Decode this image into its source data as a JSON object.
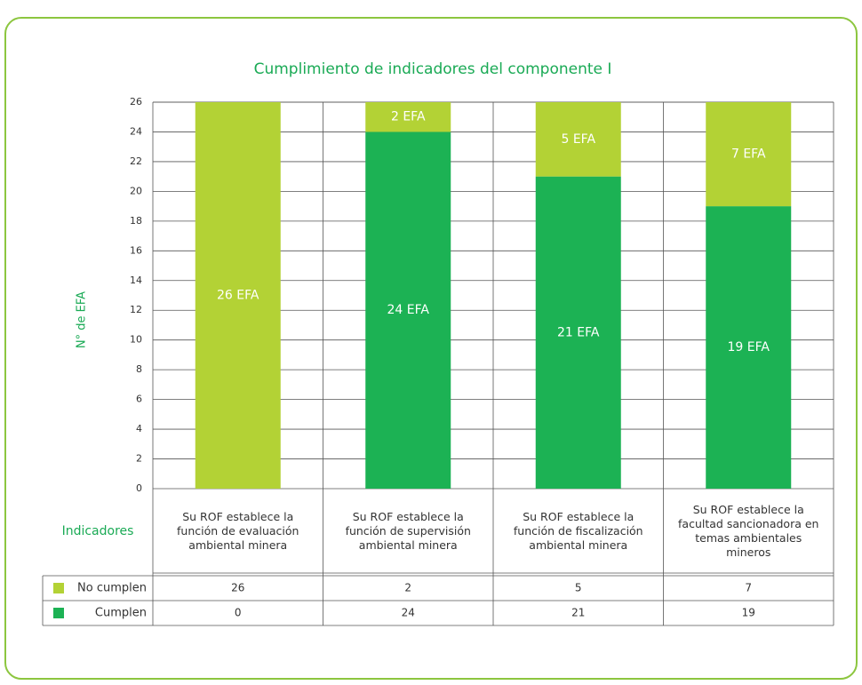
{
  "chart_data": {
    "type": "stacked_bar",
    "title": "Cumplimiento de indicadores del componente I",
    "y_label": "N° de EFA",
    "table_header": "Indicadores",
    "categories": [
      "Su ROF establece la función de evaluación ambiental minera",
      "Su ROF establece la función de supervisión ambiental minera",
      "Su ROF establece la función de fiscalización ambiental minera",
      "Su ROF establece la facultad sancionadora en temas ambientales mineros"
    ],
    "series": [
      {
        "name": "Cumplen",
        "color": "#1cb254",
        "values": [
          0,
          24,
          21,
          19
        ],
        "value_labels": [
          null,
          "24 EFA",
          "21 EFA",
          "19 EFA"
        ]
      },
      {
        "name": "No cumplen",
        "color": "#b3d235",
        "values": [
          26,
          2,
          5,
          7
        ],
        "value_labels": [
          "26 EFA",
          "2 EFA",
          "5 EFA",
          "7 EFA"
        ]
      }
    ],
    "ylim": [
      0,
      26
    ],
    "yticks": [
      0,
      2,
      4,
      6,
      8,
      10,
      12,
      14,
      16,
      18,
      20,
      22,
      24,
      26
    ],
    "grid": true
  }
}
